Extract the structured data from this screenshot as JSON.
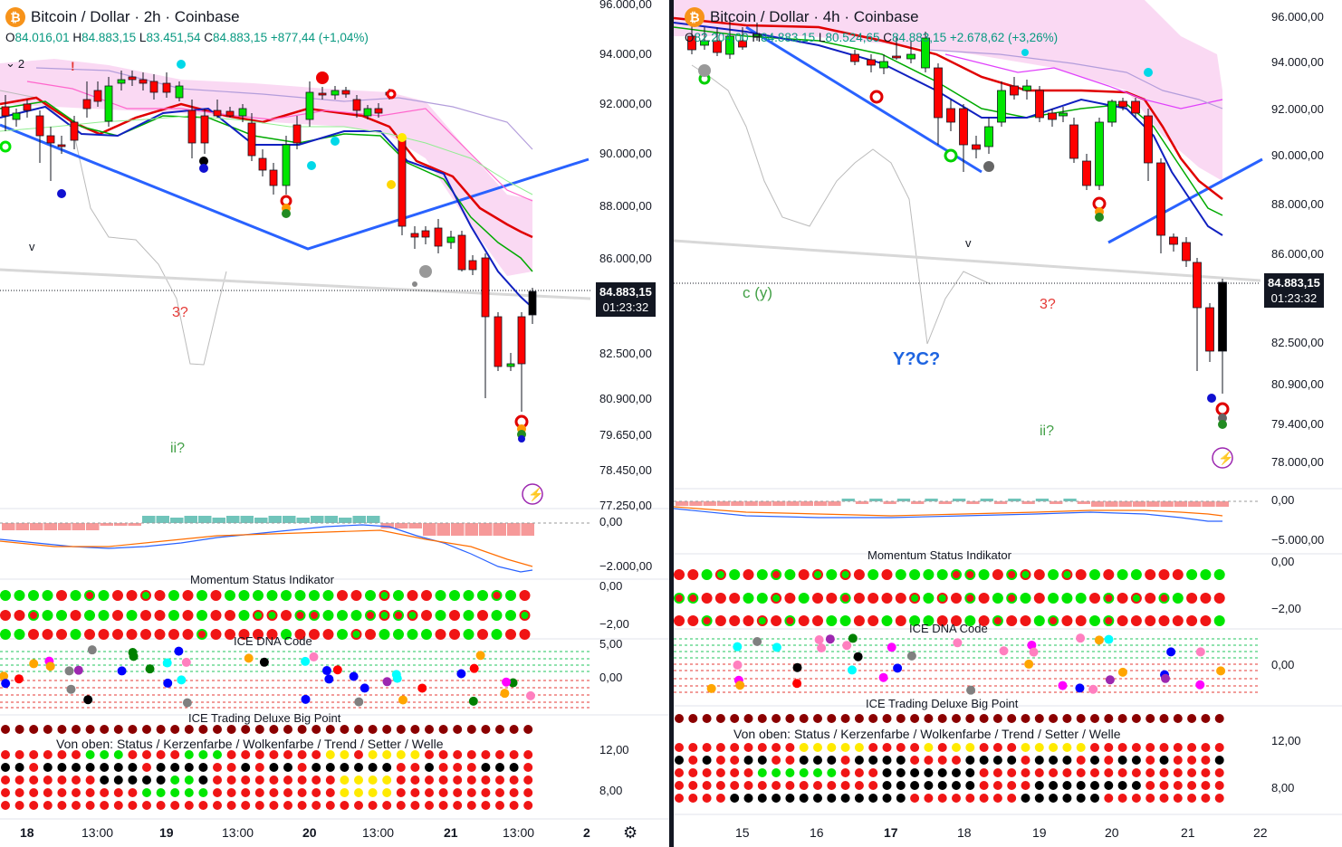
{
  "left": {
    "title": "Bitcoin / Dollar · 2h · Coinbase",
    "ohlc": {
      "o_label": "O",
      "o": "84.016,01",
      "h_label": "H",
      "h": "84.883,15",
      "l_label": "L",
      "l": "83.451,54",
      "c_label": "C",
      "c": "84.883,15",
      "change": "+877,44 (+1,04%)"
    },
    "indicator_count": "2",
    "price_axis": [
      "96.000,00",
      "94.000,00",
      "92.000,00",
      "90.000,00",
      "88.000,00",
      "86.000,00",
      "82.500,00",
      "80.900,00",
      "79.650,00",
      "78.450,00",
      "77.250,00"
    ],
    "last_price": "84.883,15",
    "countdown": "01:23:32",
    "macd_axis": [
      "0,00",
      "−2.000,00"
    ],
    "momentum_title": "Momentum Status Indikator",
    "momentum_axis": [
      "0,00",
      "−2,00"
    ],
    "dna_title": "ICE DNA Code",
    "dna_axis": [
      "5,00",
      "0,00"
    ],
    "bigpoint_title": "ICE Trading Deluxe Big Point",
    "bigpoint_subtitle": "Von oben: Status / Kerzenfarbe / Wolkenfarbe / Trend / Setter / Welle",
    "bigpoint_axis": [
      "12,00",
      "8,00"
    ],
    "annotations": {
      "wave3": "3?",
      "waveii": "ii?",
      "v": "v",
      "excl": "!"
    },
    "time_axis": [
      {
        "t": "18",
        "bold": true
      },
      {
        "t": "13:00",
        "bold": false
      },
      {
        "t": "19",
        "bold": true
      },
      {
        "t": "13:00",
        "bold": false
      },
      {
        "t": "20",
        "bold": true
      },
      {
        "t": "13:00",
        "bold": false
      },
      {
        "t": "21",
        "bold": true
      },
      {
        "t": "13:00",
        "bold": false
      },
      {
        "t": "2",
        "bold": true
      }
    ]
  },
  "right": {
    "title": "Bitcoin / Dollar · 4h · Coinbase",
    "ohlc": {
      "o_label": "O",
      "o": "82.204,00",
      "h_label": "H",
      "h": "84.883,15",
      "l_label": "L",
      "l": "80.524,65",
      "c_label": "C",
      "c": "84.883,15",
      "change": "+2.678,62 (+3,26%)"
    },
    "price_axis": [
      "96.000,00",
      "94.000,00",
      "92.000,00",
      "90.000,00",
      "88.000,00",
      "86.000,00",
      "82.500,00",
      "80.900,00",
      "79.400,00",
      "78.000,00"
    ],
    "last_price": "84.883,15",
    "countdown": "01:23:32",
    "macd_axis": [
      "0,00",
      "−5.000,00"
    ],
    "momentum_title": "Momentum Status Indikator",
    "momentum_axis": [
      "0,00",
      "−2,00"
    ],
    "dna_title": "ICE DNA Code",
    "dna_axis": [
      "0,00"
    ],
    "bigpoint_title": "ICE Trading Deluxe Big Point",
    "bigpoint_subtitle": "Von oben: Status / Kerzenfarbe / Wolkenfarbe / Trend / Setter / Welle",
    "bigpoint_axis": [
      "12,00",
      "8,00"
    ],
    "annotations": {
      "cy": "c (y)",
      "yc": "Y?C?",
      "wave3": "3?",
      "waveii": "ii?",
      "v": "v"
    },
    "time_axis": [
      {
        "t": "15",
        "bold": false
      },
      {
        "t": "16",
        "bold": false
      },
      {
        "t": "17",
        "bold": true
      },
      {
        "t": "18",
        "bold": false
      },
      {
        "t": "19",
        "bold": false
      },
      {
        "t": "20",
        "bold": false
      },
      {
        "t": "21",
        "bold": false
      },
      {
        "t": "22",
        "bold": false
      }
    ]
  },
  "colors": {
    "up": "#00e600",
    "down": "#ff0000",
    "kumo": "#f8c9ee",
    "trendline": "#2962ff",
    "macd_neg": "#f47f7f",
    "macd_pos": "#4cb5a9"
  }
}
